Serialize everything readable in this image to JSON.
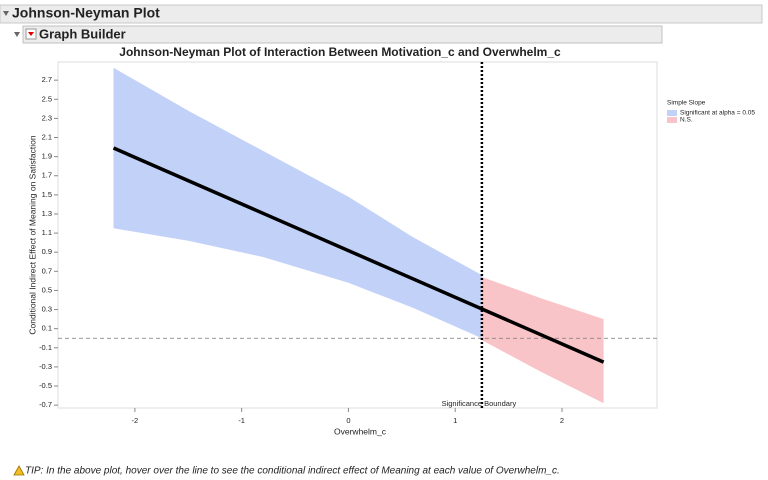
{
  "header": {
    "title": "Johnson-Neyman Plot"
  },
  "panel": {
    "title": "Graph Builder"
  },
  "chart_data": {
    "type": "band-line",
    "title": "Johnson-Neyman Plot of Interaction Between Motivation_c and Overwhelm_c",
    "x_label": "Overwhelm_c",
    "y_label": "Conditional Indirect Effect of Meaning on Satisfaction",
    "xlim": [
      -2.72,
      2.89
    ],
    "xticks": [
      -2,
      -1,
      0,
      1,
      2
    ],
    "ylim": [
      -0.73,
      2.89
    ],
    "yticks": [
      -0.7,
      -0.5,
      -0.3,
      -0.1,
      0.1,
      0.3,
      0.5,
      0.7,
      0.9,
      1.1,
      1.3,
      1.5,
      1.7,
      1.9,
      2.1,
      2.3,
      2.5,
      2.7
    ],
    "legend": {
      "title": "Simple Slope",
      "position": "right"
    },
    "bands": [
      {
        "name": "Significant at alpha = 0.05",
        "color": "#c2d1f8",
        "x": [
          -2.2,
          -1.5,
          -0.8,
          0,
          0.6,
          1.25
        ],
        "upper": [
          2.83,
          2.38,
          1.96,
          1.48,
          1.06,
          0.66
        ],
        "lower": [
          1.15,
          1.02,
          0.85,
          0.58,
          0.32,
          0.0
        ]
      },
      {
        "name": "N.S.",
        "color": "#f9c4c8",
        "x": [
          1.25,
          1.8,
          2.39
        ],
        "upper": [
          0.64,
          0.42,
          0.2
        ],
        "lower": [
          -0.02,
          -0.35,
          -0.68
        ]
      }
    ],
    "line": {
      "color": "#000000",
      "x": [
        -2.2,
        2.39
      ],
      "values": [
        1.99,
        -0.25
      ]
    },
    "zero_line": 0,
    "boundary": {
      "x": 1.25,
      "label": "Significance Boundary"
    }
  },
  "tip": {
    "text": "TIP: In the above plot, hover over the line to see the conditional indirect effect of Meaning at each value of Overwhelm_c."
  }
}
